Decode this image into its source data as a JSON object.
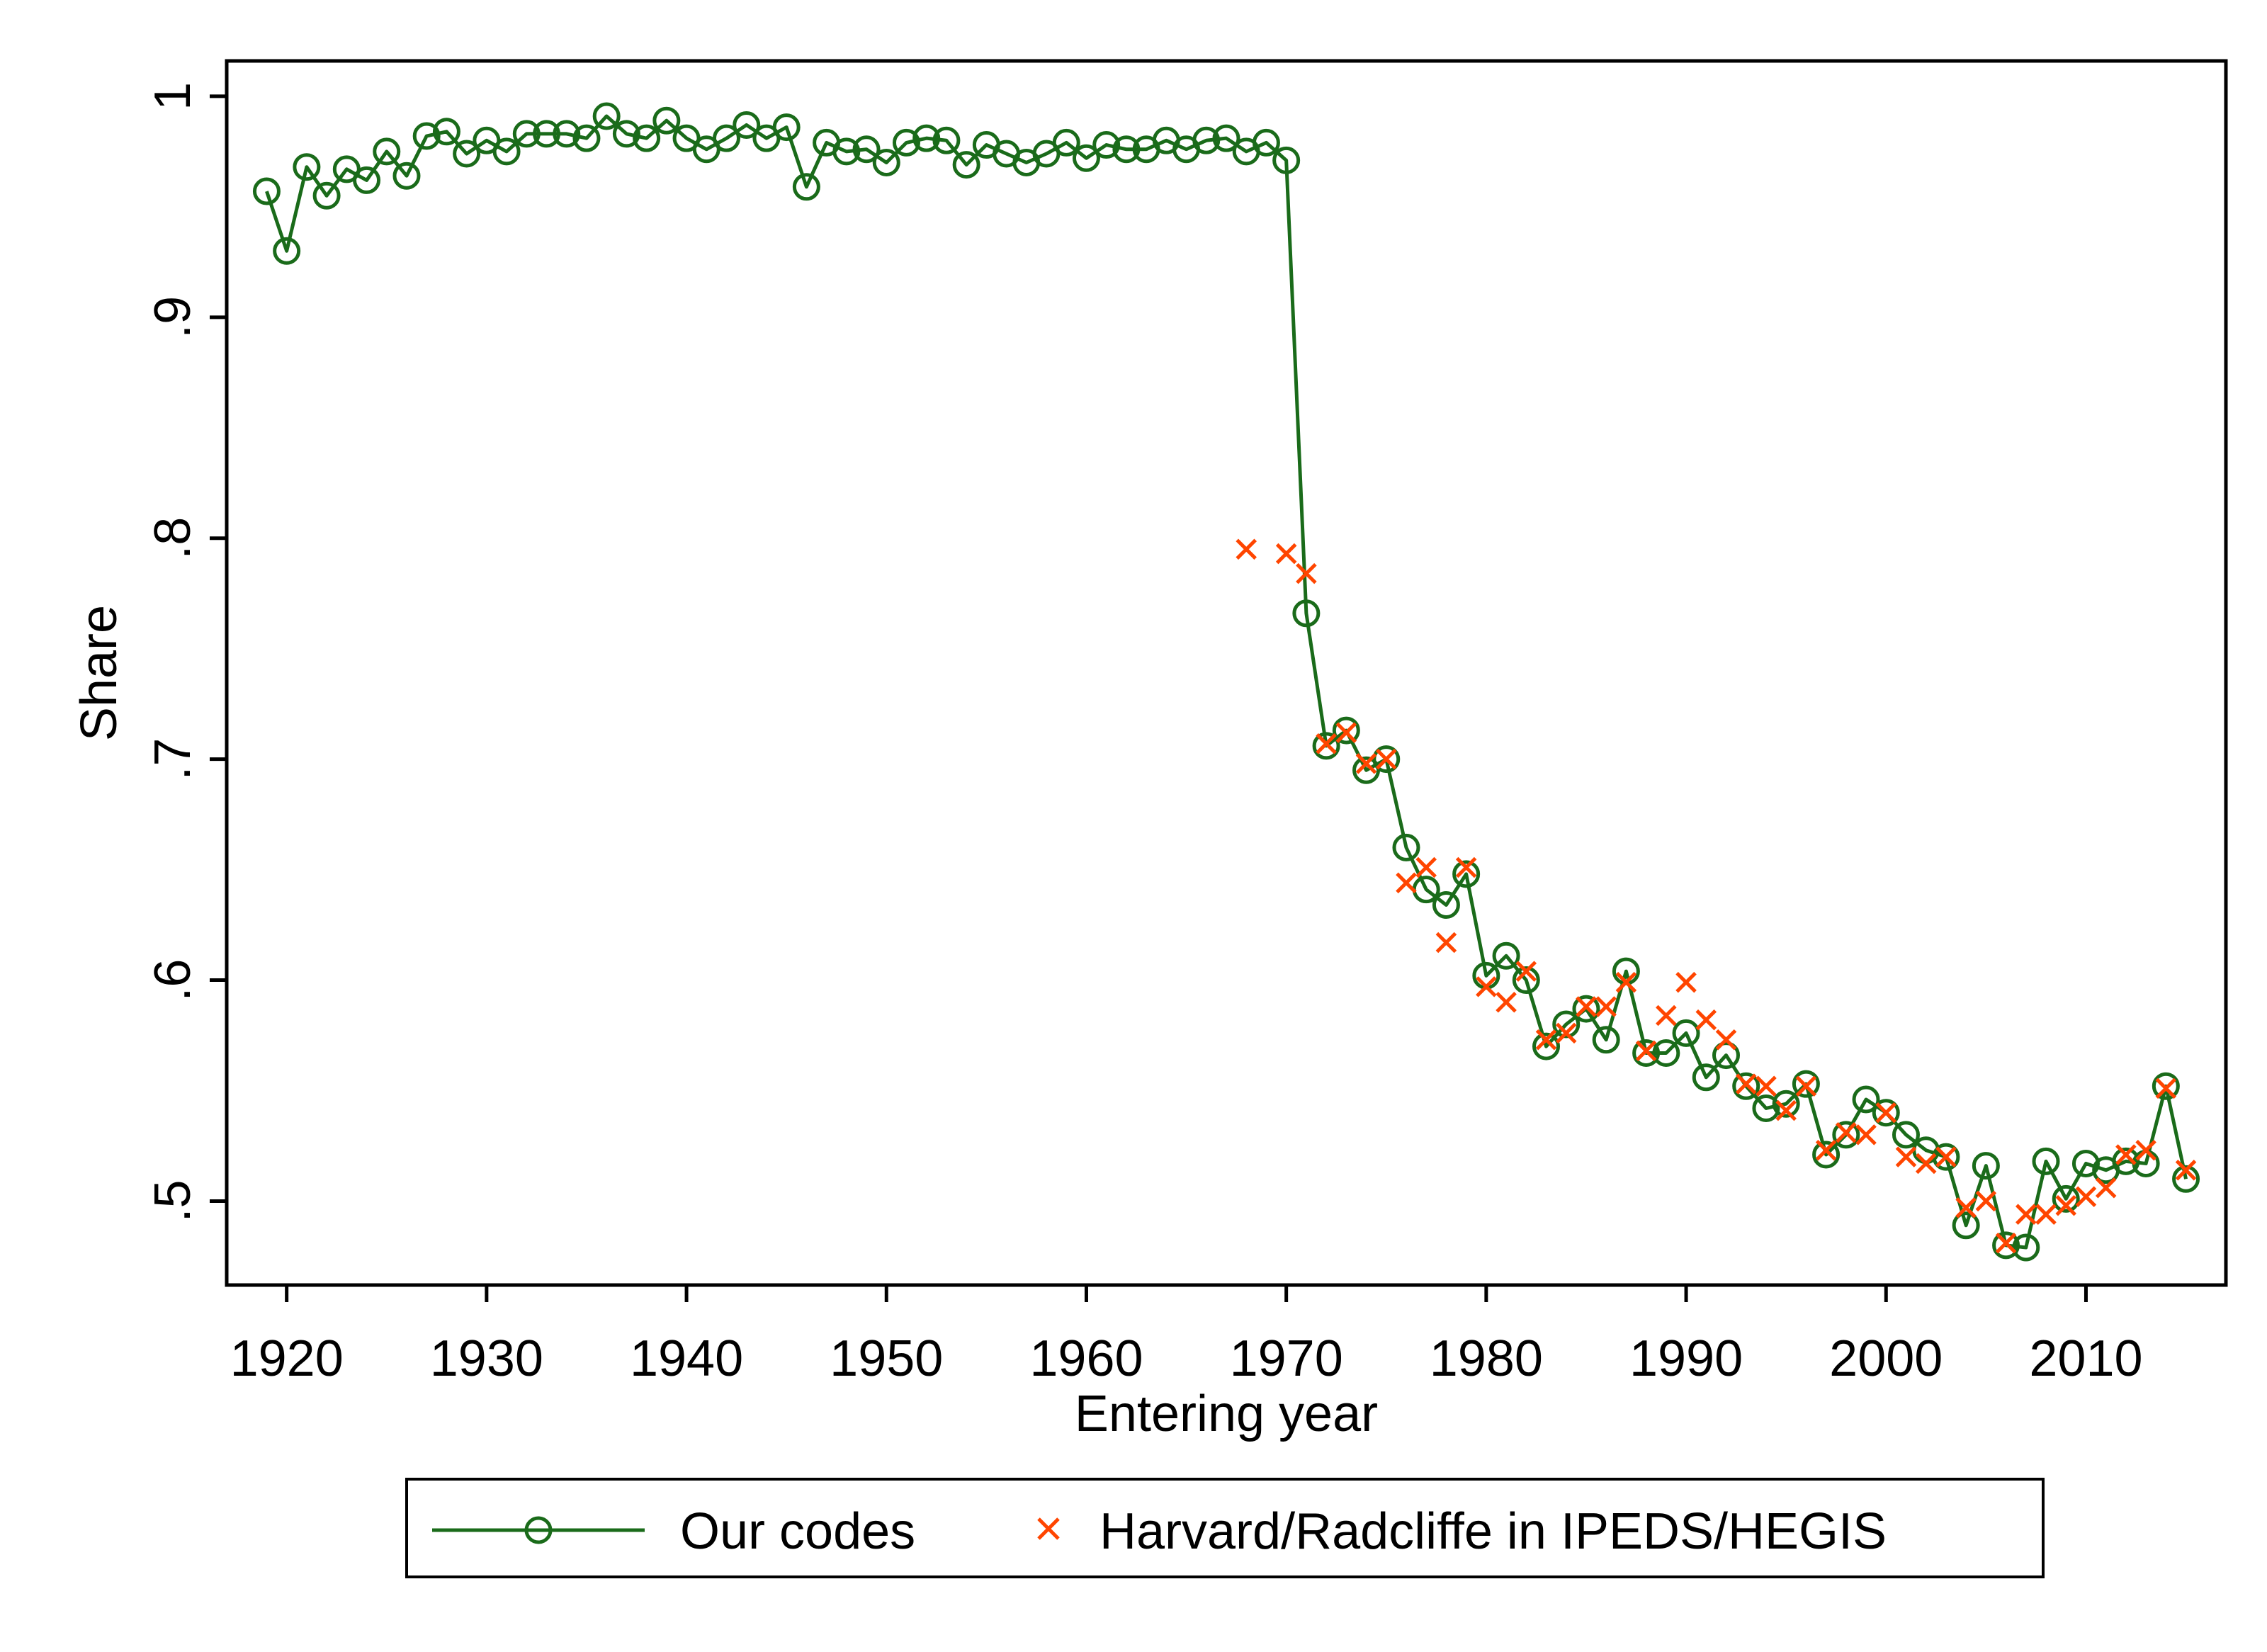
{
  "chart_data": {
    "type": "line",
    "title": "",
    "xlabel": "Entering year",
    "ylabel": "Share",
    "xlim": [
      1917,
      2017
    ],
    "ylim": [
      0.462,
      1.016
    ],
    "x_ticks": [
      1920,
      1930,
      1940,
      1950,
      1960,
      1970,
      1980,
      1990,
      2000,
      2010
    ],
    "x_tick_labels": [
      "1920",
      "1930",
      "1940",
      "1950",
      "1960",
      "1970",
      "1980",
      "1990",
      "2000",
      "2010"
    ],
    "y_ticks": [
      0.5,
      0.6,
      0.7,
      0.8,
      0.9,
      1.0
    ],
    "y_tick_labels": [
      ".5",
      ".6",
      ".7",
      ".8",
      ".9",
      "1"
    ],
    "grid": false,
    "legend_position": "bottom",
    "colors": {
      "our_codes": "#1a6b1a",
      "harvard": "#ff4500"
    },
    "series": [
      {
        "name": "Our codes",
        "marker": "circle",
        "line": true,
        "x": [
          1919,
          1920,
          1921,
          1922,
          1923,
          1924,
          1925,
          1926,
          1927,
          1928,
          1929,
          1930,
          1931,
          1932,
          1933,
          1934,
          1935,
          1936,
          1937,
          1938,
          1939,
          1940,
          1941,
          1942,
          1943,
          1944,
          1945,
          1946,
          1947,
          1948,
          1949,
          1950,
          1951,
          1952,
          1953,
          1954,
          1955,
          1956,
          1957,
          1958,
          1959,
          1960,
          1961,
          1962,
          1963,
          1964,
          1965,
          1966,
          1967,
          1968,
          1969,
          1970,
          1971,
          1972,
          1973,
          1974,
          1975,
          1976,
          1977,
          1978,
          1979,
          1980,
          1981,
          1982,
          1983,
          1984,
          1985,
          1986,
          1987,
          1988,
          1989,
          1990,
          1991,
          1992,
          1993,
          1994,
          1995,
          1996,
          1997,
          1998,
          1999,
          2000,
          2001,
          2002,
          2003,
          2004,
          2005,
          2006,
          2007,
          2008,
          2009,
          2010,
          2011,
          2012,
          2013,
          2014,
          2015
        ],
        "y": [
          0.957,
          0.93,
          0.968,
          0.955,
          0.967,
          0.962,
          0.975,
          0.964,
          0.982,
          0.984,
          0.974,
          0.98,
          0.975,
          0.983,
          0.983,
          0.983,
          0.981,
          0.991,
          0.983,
          0.981,
          0.989,
          0.981,
          0.976,
          0.981,
          0.987,
          0.981,
          0.986,
          0.959,
          0.979,
          0.975,
          0.976,
          0.97,
          0.979,
          0.981,
          0.98,
          0.969,
          0.978,
          0.974,
          0.97,
          0.974,
          0.979,
          0.972,
          0.978,
          0.976,
          0.976,
          0.98,
          0.976,
          0.98,
          0.981,
          0.975,
          0.979,
          0.971,
          0.766,
          0.706,
          0.713,
          0.695,
          0.7,
          0.66,
          0.641,
          0.634,
          0.648,
          0.602,
          0.611,
          0.6,
          0.57,
          0.58,
          0.587,
          0.573,
          0.604,
          0.567,
          0.567,
          0.576,
          0.556,
          0.566,
          0.552,
          0.542,
          0.544,
          0.553,
          0.521,
          0.53,
          0.546,
          0.54,
          0.53,
          0.523,
          0.52,
          0.489,
          0.516,
          0.48,
          0.479,
          0.518,
          0.501,
          0.517,
          0.514,
          0.518,
          0.517,
          0.552,
          0.51
        ]
      },
      {
        "name": "Harvard/Radcliffe in IPEDS/HEGIS",
        "marker": "x",
        "line": false,
        "x": [
          1968,
          1970,
          1971,
          1972,
          1973,
          1974,
          1975,
          1976,
          1977,
          1978,
          1979,
          1980,
          1981,
          1982,
          1983,
          1984,
          1985,
          1986,
          1987,
          1988,
          1989,
          1990,
          1991,
          1992,
          1993,
          1994,
          1995,
          1996,
          1997,
          1998,
          1999,
          2000,
          2001,
          2002,
          2003,
          2004,
          2005,
          2006,
          2007,
          2008,
          2009,
          2010,
          2011,
          2012,
          2013,
          2014,
          2015
        ],
        "y": [
          0.795,
          0.793,
          0.784,
          0.707,
          0.712,
          0.698,
          0.7,
          0.644,
          0.651,
          0.617,
          0.651,
          0.597,
          0.59,
          0.604,
          0.573,
          0.576,
          0.588,
          0.588,
          0.599,
          0.568,
          0.584,
          0.599,
          0.582,
          0.573,
          0.553,
          0.552,
          0.541,
          0.552,
          0.523,
          0.531,
          0.53,
          0.54,
          0.52,
          0.517,
          0.52,
          0.497,
          0.5,
          0.481,
          0.494,
          0.494,
          0.498,
          0.502,
          0.506,
          0.521,
          0.523,
          0.551,
          0.514
        ]
      }
    ]
  }
}
